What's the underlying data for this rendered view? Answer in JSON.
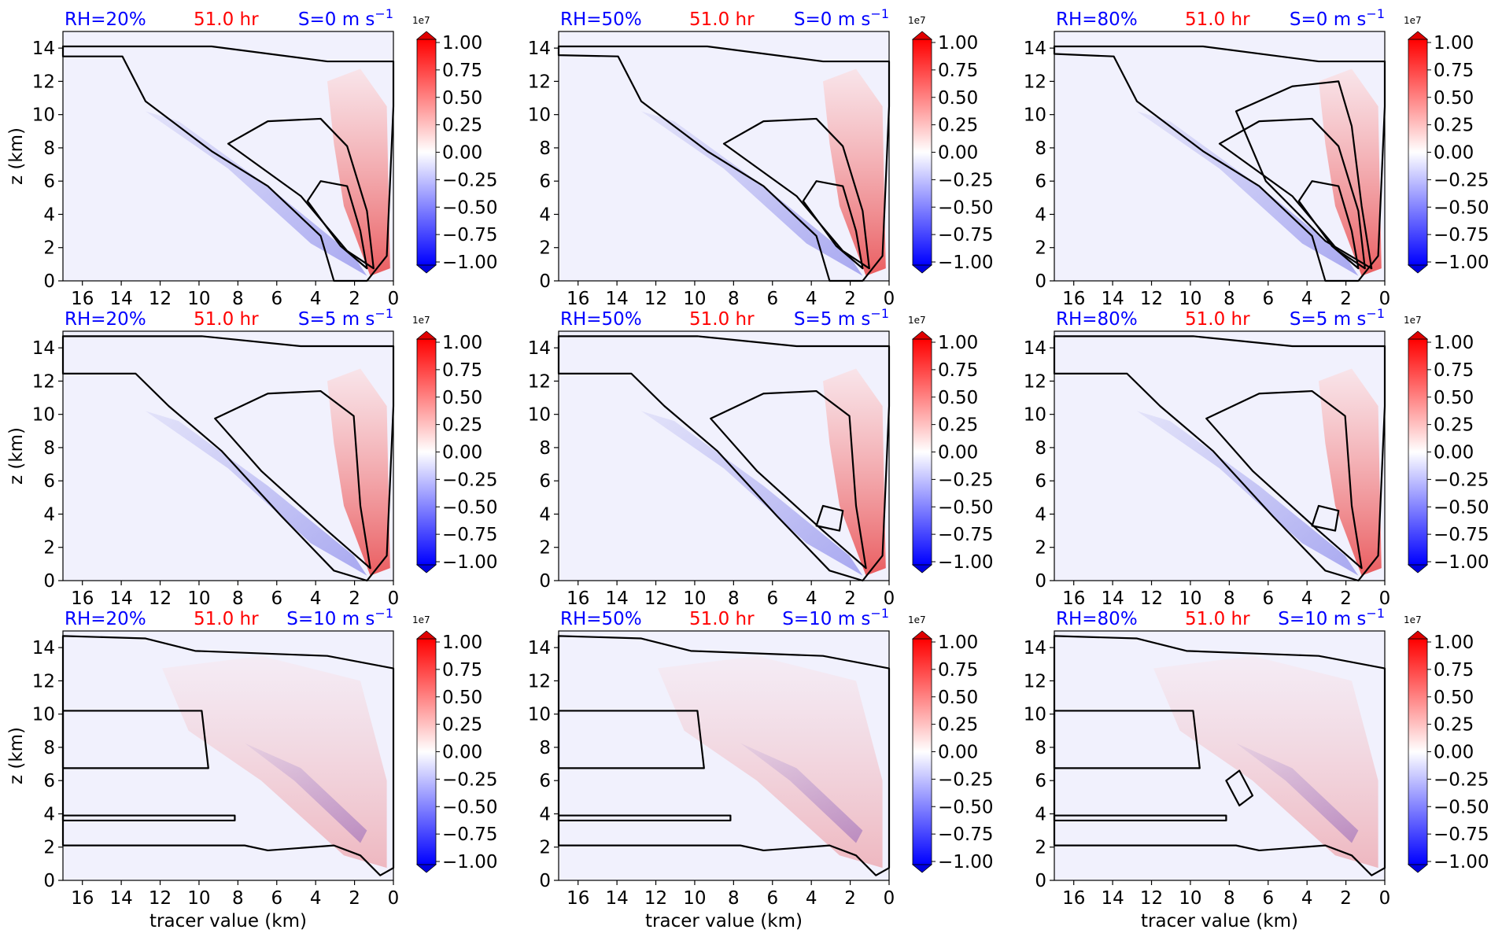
{
  "figure": {
    "time_label": "51.0 hr",
    "colorbar_multiplier": "1e7",
    "colorbar_ticks": [
      "1.00",
      "0.75",
      "0.50",
      "0.25",
      "0.00",
      "−0.25",
      "−0.50",
      "−0.75",
      "−1.00"
    ],
    "x_ticks": [
      "16",
      "14",
      "12",
      "10",
      "8",
      "6",
      "4",
      "2",
      "0"
    ],
    "y_ticks": [
      "0",
      "2",
      "4",
      "6",
      "8",
      "10",
      "12",
      "14"
    ],
    "ylabel": "z (km)",
    "xlabel": "tracer value (km)",
    "shear_unit": "m s",
    "shear_exponent": "−1",
    "colors": {
      "rh_label": "#0000ff",
      "time_label": "#ff0000",
      "shear_label": "#0000ff",
      "background": "#f1f1fd",
      "contour": "#000000"
    }
  },
  "chart_data": [
    {
      "type": "heatmap",
      "rh": "RH=20%",
      "shear": "S=0",
      "xlim": [
        17,
        0
      ],
      "ylim": [
        0,
        15
      ],
      "clim": [
        -1,
        1
      ]
    },
    {
      "type": "heatmap",
      "rh": "RH=50%",
      "shear": "S=0",
      "xlim": [
        17,
        0
      ],
      "ylim": [
        0,
        15
      ],
      "clim": [
        -1,
        1
      ]
    },
    {
      "type": "heatmap",
      "rh": "RH=80%",
      "shear": "S=0",
      "xlim": [
        17,
        0
      ],
      "ylim": [
        0,
        15
      ],
      "clim": [
        -1,
        1
      ]
    },
    {
      "type": "heatmap",
      "rh": "RH=20%",
      "shear": "S=5",
      "xlim": [
        17,
        0
      ],
      "ylim": [
        0,
        15
      ],
      "clim": [
        -1,
        1
      ]
    },
    {
      "type": "heatmap",
      "rh": "RH=50%",
      "shear": "S=5",
      "xlim": [
        17,
        0
      ],
      "ylim": [
        0,
        15
      ],
      "clim": [
        -1,
        1
      ]
    },
    {
      "type": "heatmap",
      "rh": "RH=80%",
      "shear": "S=5",
      "xlim": [
        17,
        0
      ],
      "ylim": [
        0,
        15
      ],
      "clim": [
        -1,
        1
      ]
    },
    {
      "type": "heatmap",
      "rh": "RH=20%",
      "shear": "S=10",
      "xlim": [
        17,
        0
      ],
      "ylim": [
        0,
        15
      ],
      "clim": [
        -1,
        1
      ]
    },
    {
      "type": "heatmap",
      "rh": "RH=50%",
      "shear": "S=10",
      "xlim": [
        17,
        0
      ],
      "ylim": [
        0,
        15
      ],
      "clim": [
        -1,
        1
      ]
    },
    {
      "type": "heatmap",
      "rh": "RH=80%",
      "shear": "S=10",
      "xlim": [
        17,
        0
      ],
      "ylim": [
        0,
        15
      ],
      "clim": [
        -1,
        1
      ]
    }
  ]
}
